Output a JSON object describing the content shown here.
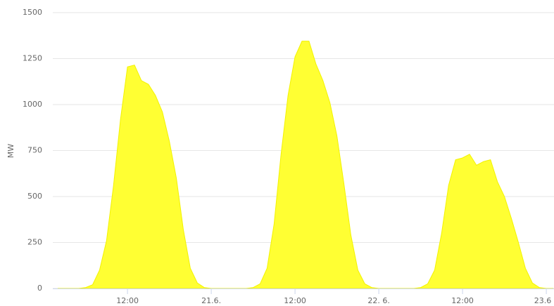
{
  "chart_data": {
    "type": "area",
    "y_label": "MW",
    "color": "#ffff33",
    "x": [
      2,
      3,
      4,
      5,
      6,
      7,
      8,
      9,
      10,
      11,
      12,
      13,
      14,
      15,
      16,
      17,
      18,
      19,
      20,
      21,
      22,
      23,
      24,
      25,
      26,
      27,
      28,
      29,
      30,
      31,
      32,
      33,
      34,
      35,
      36,
      37,
      38,
      39,
      40,
      41,
      42,
      43,
      44,
      45,
      46,
      47,
      48,
      49,
      50,
      51,
      52,
      53,
      54,
      55,
      56,
      57,
      58,
      59,
      60,
      61,
      62,
      63,
      64,
      65,
      66,
      67,
      68,
      69,
      70,
      71,
      72,
      73
    ],
    "values": [
      0,
      0,
      0,
      0,
      5,
      20,
      100,
      260,
      560,
      920,
      1205,
      1215,
      1130,
      1110,
      1050,
      960,
      800,
      600,
      320,
      110,
      30,
      5,
      0,
      0,
      0,
      0,
      0,
      0,
      5,
      25,
      110,
      350,
      730,
      1050,
      1260,
      1345,
      1345,
      1220,
      1130,
      1010,
      830,
      570,
      290,
      100,
      25,
      5,
      0,
      0,
      0,
      0,
      0,
      0,
      5,
      25,
      100,
      300,
      560,
      700,
      710,
      730,
      670,
      690,
      700,
      580,
      500,
      380,
      250,
      110,
      30,
      5,
      0,
      0
    ],
    "xlim": [
      1.3,
      73.1
    ],
    "xticks": [
      {
        "value": 12,
        "label": "12:00"
      },
      {
        "value": 24,
        "label": "21.6."
      },
      {
        "value": 36,
        "label": "12:00"
      },
      {
        "value": 48,
        "label": "22. 6."
      },
      {
        "value": 60,
        "label": "12:00"
      },
      {
        "value": 72,
        "label": "23.6"
      }
    ],
    "ylim": [
      0,
      1500
    ],
    "yticks": [
      0,
      250,
      500,
      750,
      1000,
      1250,
      1500
    ],
    "grid": true
  }
}
